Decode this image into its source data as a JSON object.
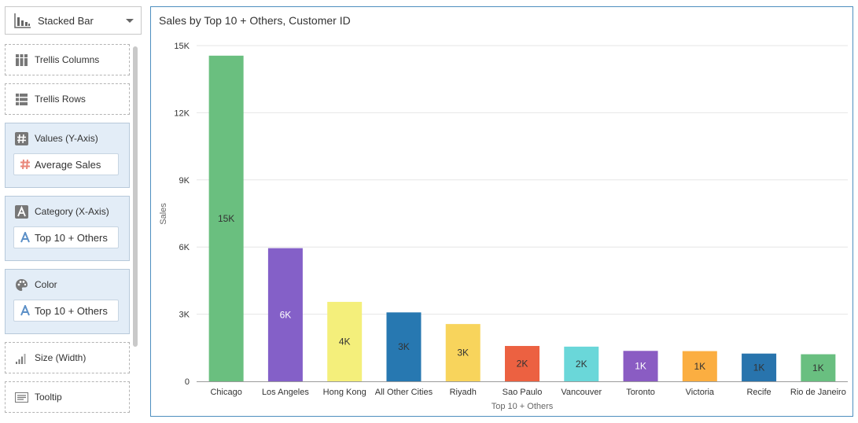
{
  "chart_type_selector": {
    "label": "Stacked Bar",
    "icon": "bar-chart-icon"
  },
  "slots": {
    "trellis_columns": {
      "label": "Trellis Columns",
      "icon": "columns-icon"
    },
    "trellis_rows": {
      "label": "Trellis Rows",
      "icon": "rows-icon"
    },
    "values": {
      "label": "Values (Y-Axis)",
      "icon": "hash-icon",
      "pill": "Average Sales",
      "pill_icon": "hash-icon"
    },
    "category": {
      "label": "Category (X-Axis)",
      "icon": "text-a-icon",
      "pill": "Top 10 + Others",
      "pill_icon": "text-a-icon"
    },
    "color": {
      "label": "Color",
      "icon": "palette-icon",
      "pill": "Top 10 + Others",
      "pill_icon": "text-a-icon"
    },
    "size": {
      "label": "Size (Width)",
      "icon": "size-icon"
    },
    "tooltip": {
      "label": "Tooltip",
      "icon": "tooltip-icon"
    }
  },
  "chart_data": {
    "type": "bar",
    "title": "Sales by Top 10 + Others, Customer ID",
    "xlabel": "Top 10 + Others",
    "ylabel": "Sales",
    "ylim": [
      0,
      15000
    ],
    "y_ticks": [
      0,
      3000,
      6000,
      9000,
      12000,
      15000
    ],
    "y_tick_labels": [
      "0",
      "3K",
      "6K",
      "9K",
      "12K",
      "15K"
    ],
    "grid": true,
    "categories": [
      "Chicago",
      "Los Angeles",
      "Hong Kong",
      "All Other Cities",
      "Riyadh",
      "Sao Paulo",
      "Vancouver",
      "Toronto",
      "Victoria",
      "Recife",
      "Rio de Janeiro"
    ],
    "values": [
      14550,
      5950,
      3550,
      3080,
      2560,
      1580,
      1550,
      1360,
      1350,
      1240,
      1210
    ],
    "data_labels": [
      "15K",
      "6K",
      "4K",
      "3K",
      "3K",
      "2K",
      "2K",
      "1K",
      "1K",
      "1K",
      "1K"
    ],
    "colors": [
      "#6abf7f",
      "#8460c8",
      "#f4ef7b",
      "#2778b1",
      "#f8d45c",
      "#ec6141",
      "#6ad7d9",
      "#8a5cc3",
      "#fbae41",
      "#2874ad",
      "#69bf80"
    ],
    "label_colors": [
      "#333333",
      "#ffffff",
      "#333333",
      "#333333",
      "#333333",
      "#333333",
      "#333333",
      "#ffffff",
      "#333333",
      "#333333",
      "#333333"
    ]
  }
}
